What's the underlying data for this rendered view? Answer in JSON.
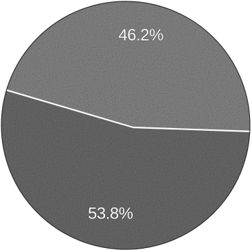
{
  "chart_data": {
    "type": "pie",
    "title": "",
    "slices": [
      {
        "label": "46.2%",
        "value": 46.2,
        "color": "#8a8a8a"
      },
      {
        "label": "53.8%",
        "value": 53.8,
        "color": "#6e6e6e"
      }
    ],
    "legend": "none"
  }
}
